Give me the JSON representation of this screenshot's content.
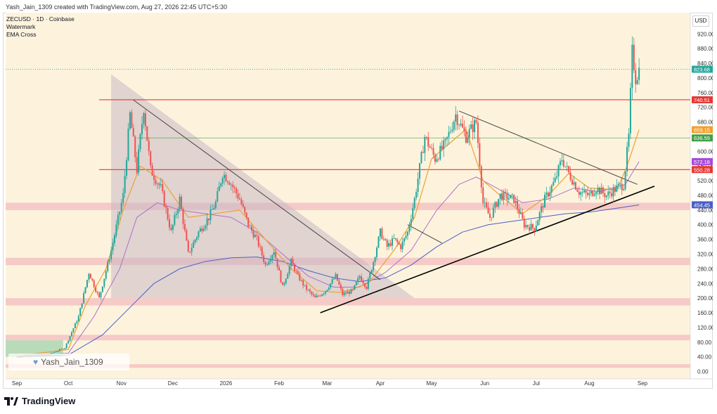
{
  "header": {
    "credit": "Yash_Jain_1309 created with TradingView.com, Aug 27, 2026 22:45 UTC+5:30"
  },
  "legend": {
    "symbol": "ZECUSD · 1D · Coinbase",
    "line2": "Watermark",
    "line3": "EMA Cross"
  },
  "currency_button": "USD",
  "watermark": {
    "user": "Yash_Jain_1309"
  },
  "footer": {
    "brand": "TradingView"
  },
  "colors": {
    "background": "#fdf3dd",
    "up": "#26a69a",
    "down": "#ef5350",
    "zone": "#f4c2c2",
    "ema_fast": "#f0a030",
    "ema_mid": "#b070c8",
    "ema_slow": "#4a5fc8",
    "resistance_red": "#e53935",
    "level_green": "#43a047"
  },
  "chart_data": {
    "type": "candlestick",
    "symbol": "ZECUSD",
    "timeframe": "1D",
    "exchange": "Coinbase",
    "x_labels": [
      "Sep",
      "Oct",
      "Nov",
      "Dec",
      "2026",
      "Feb",
      "Mar",
      "Apr",
      "May",
      "Jun",
      "Jul",
      "Aug",
      "Sep"
    ],
    "x_label_days": [
      0,
      30,
      61,
      91,
      122,
      153,
      181,
      212,
      242,
      273,
      303,
      334,
      365
    ],
    "y_ticks": [
      0,
      40,
      80,
      120,
      160,
      200,
      240,
      280,
      320,
      360,
      400,
      440,
      480,
      520,
      560,
      600,
      640,
      680,
      720,
      760,
      800,
      840,
      880,
      920
    ],
    "y_tick_labels": [
      "0.00",
      "40.00",
      "80.00",
      "120.00",
      "160.00",
      "200.00",
      "240.00",
      "280.00",
      "320.00",
      "360.00",
      "400.00",
      "440.00",
      "480.00",
      "520.00",
      "560.00",
      "600.00",
      "640.00",
      "680.00",
      "720.00",
      "760.00",
      "800.00",
      "840.00",
      "880.00",
      "920.00"
    ],
    "ylim": [
      -20,
      955
    ],
    "price_path": [
      [
        0,
        40
      ],
      [
        18,
        45
      ],
      [
        28,
        65
      ],
      [
        36,
        150
      ],
      [
        42,
        270
      ],
      [
        48,
        200
      ],
      [
        55,
        330
      ],
      [
        62,
        480
      ],
      [
        66,
        700
      ],
      [
        70,
        550
      ],
      [
        74,
        720
      ],
      [
        78,
        550
      ],
      [
        84,
        500
      ],
      [
        90,
        380
      ],
      [
        95,
        470
      ],
      [
        100,
        320
      ],
      [
        106,
        380
      ],
      [
        112,
        420
      ],
      [
        116,
        460
      ],
      [
        120,
        540
      ],
      [
        124,
        520
      ],
      [
        130,
        470
      ],
      [
        135,
        400
      ],
      [
        140,
        360
      ],
      [
        145,
        290
      ],
      [
        150,
        330
      ],
      [
        155,
        230
      ],
      [
        160,
        300
      ],
      [
        164,
        260
      ],
      [
        168,
        230
      ],
      [
        174,
        200
      ],
      [
        180,
        220
      ],
      [
        186,
        260
      ],
      [
        190,
        210
      ],
      [
        196,
        220
      ],
      [
        200,
        260
      ],
      [
        204,
        230
      ],
      [
        208,
        300
      ],
      [
        212,
        380
      ],
      [
        216,
        340
      ],
      [
        220,
        360
      ],
      [
        224,
        340
      ],
      [
        228,
        380
      ],
      [
        232,
        470
      ],
      [
        238,
        640
      ],
      [
        244,
        580
      ],
      [
        250,
        620
      ],
      [
        256,
        700
      ],
      [
        262,
        640
      ],
      [
        268,
        680
      ],
      [
        272,
        460
      ],
      [
        276,
        420
      ],
      [
        282,
        480
      ],
      [
        290,
        470
      ],
      [
        296,
        400
      ],
      [
        302,
        390
      ],
      [
        308,
        470
      ],
      [
        314,
        520
      ],
      [
        318,
        580
      ],
      [
        322,
        540
      ],
      [
        328,
        490
      ],
      [
        334,
        480
      ],
      [
        338,
        500
      ],
      [
        344,
        480
      ],
      [
        350,
        500
      ],
      [
        354,
        510
      ],
      [
        357,
        640
      ],
      [
        359,
        870
      ],
      [
        361,
        800
      ],
      [
        363,
        823
      ]
    ],
    "ema_fast": [
      [
        0,
        42
      ],
      [
        30,
        60
      ],
      [
        40,
        180
      ],
      [
        52,
        280
      ],
      [
        62,
        440
      ],
      [
        72,
        560
      ],
      [
        85,
        520
      ],
      [
        100,
        420
      ],
      [
        115,
        430
      ],
      [
        130,
        440
      ],
      [
        145,
        360
      ],
      [
        160,
        280
      ],
      [
        175,
        220
      ],
      [
        190,
        215
      ],
      [
        205,
        240
      ],
      [
        220,
        330
      ],
      [
        232,
        420
      ],
      [
        242,
        580
      ],
      [
        252,
        620
      ],
      [
        262,
        660
      ],
      [
        272,
        520
      ],
      [
        282,
        480
      ],
      [
        295,
        430
      ],
      [
        310,
        480
      ],
      [
        322,
        540
      ],
      [
        334,
        500
      ],
      [
        350,
        495
      ],
      [
        356,
        560
      ],
      [
        363,
        659
      ]
    ],
    "ema_mid": [
      [
        0,
        42
      ],
      [
        30,
        50
      ],
      [
        45,
        150
      ],
      [
        60,
        280
      ],
      [
        70,
        420
      ],
      [
        82,
        460
      ],
      [
        95,
        440
      ],
      [
        110,
        430
      ],
      [
        125,
        420
      ],
      [
        140,
        380
      ],
      [
        155,
        320
      ],
      [
        170,
        260
      ],
      [
        185,
        230
      ],
      [
        200,
        230
      ],
      [
        215,
        270
      ],
      [
        230,
        330
      ],
      [
        245,
        440
      ],
      [
        258,
        510
      ],
      [
        268,
        530
      ],
      [
        280,
        500
      ],
      [
        295,
        460
      ],
      [
        310,
        470
      ],
      [
        325,
        500
      ],
      [
        340,
        490
      ],
      [
        355,
        510
      ],
      [
        363,
        572
      ]
    ],
    "ema_slow": [
      [
        0,
        40
      ],
      [
        30,
        45
      ],
      [
        50,
        100
      ],
      [
        65,
        170
      ],
      [
        80,
        240
      ],
      [
        95,
        280
      ],
      [
        110,
        300
      ],
      [
        125,
        310
      ],
      [
        140,
        312
      ],
      [
        155,
        300
      ],
      [
        170,
        275
      ],
      [
        185,
        255
      ],
      [
        200,
        245
      ],
      [
        215,
        255
      ],
      [
        230,
        290
      ],
      [
        245,
        340
      ],
      [
        260,
        380
      ],
      [
        275,
        400
      ],
      [
        290,
        410
      ],
      [
        305,
        420
      ],
      [
        320,
        430
      ],
      [
        335,
        435
      ],
      [
        350,
        445
      ],
      [
        363,
        454
      ]
    ],
    "levels": [
      {
        "price": 823.68,
        "label": "823.68",
        "style": "dotted",
        "color": "#26a69a"
      },
      {
        "price": 740.51,
        "label": "740.51",
        "color": "#e53935"
      },
      {
        "price": 659.15,
        "label": "659.15",
        "color": "#f0a030"
      },
      {
        "price": 636.59,
        "label": "636.59",
        "color": "#43a047"
      },
      {
        "price": 572.18,
        "label": "572.18",
        "color": "#a64bd6"
      },
      {
        "price": 550.28,
        "label": "550.28",
        "color": "#e53935"
      },
      {
        "price": 454.45,
        "label": "454.45",
        "color": "#4a5fc8"
      }
    ],
    "zones": [
      [
        440,
        460
      ],
      [
        290,
        310
      ],
      [
        180,
        200
      ],
      [
        85,
        100
      ],
      [
        10,
        20
      ]
    ],
    "trendlines": [
      {
        "from": [
          68,
          740
        ],
        "to": [
          212,
          250
        ],
        "color": "#444",
        "width": 1
      },
      {
        "from": [
          177,
          160
        ],
        "to": [
          372,
          505
        ],
        "color": "#000",
        "width": 1.6
      },
      {
        "from": [
          258,
          710
        ],
        "to": [
          362,
          510
        ],
        "color": "#444",
        "width": 1
      },
      {
        "from": [
          228,
          400
        ],
        "to": [
          248,
          350
        ],
        "color": "#444",
        "width": 1
      }
    ],
    "triangle": [
      [
        55,
        810
      ],
      [
        55,
        200
      ],
      [
        232,
        200
      ]
    ],
    "green_box": {
      "x": [
        0,
        27
      ],
      "y": [
        40,
        85
      ]
    }
  }
}
